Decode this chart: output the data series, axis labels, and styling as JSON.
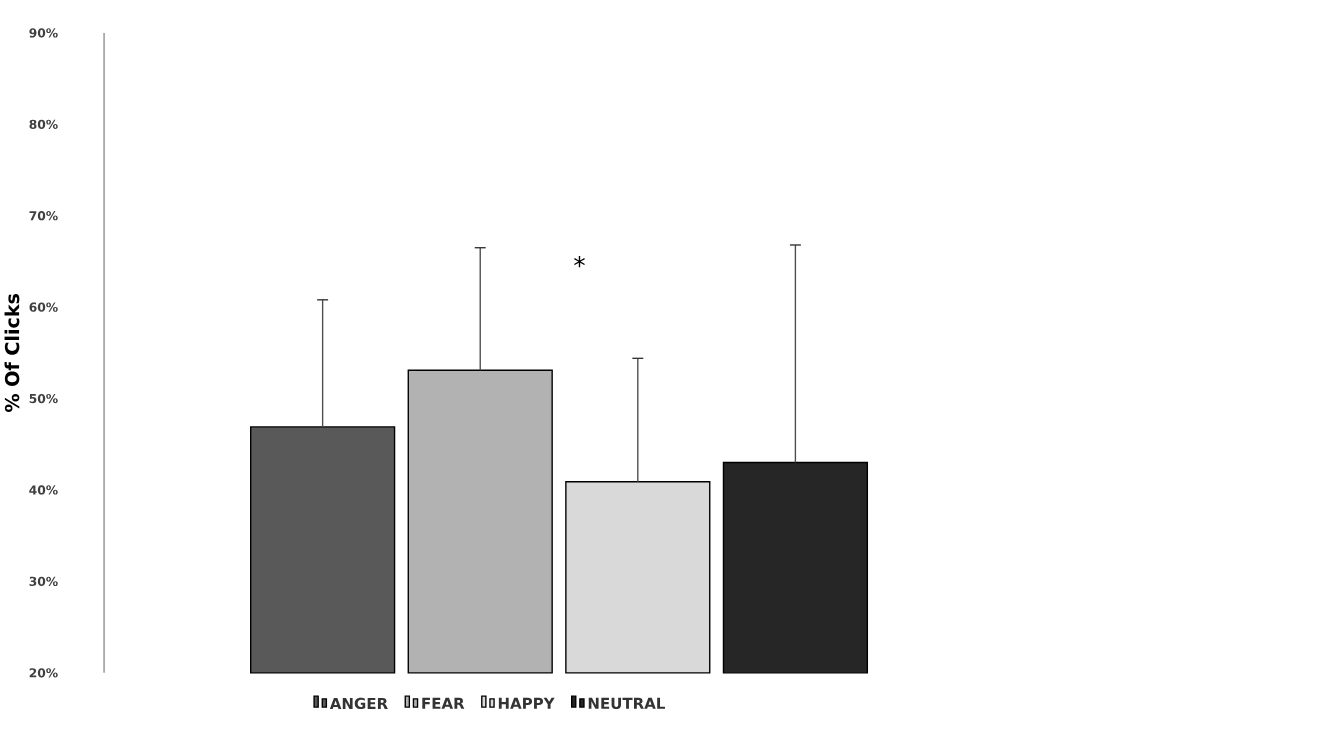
{
  "chart_data": {
    "type": "bar",
    "ylabel": "% Of Clicks",
    "categories": [
      null
    ],
    "series": [
      {
        "name": "ANGER",
        "color": "#595959",
        "values": [
          46.9
        ],
        "errors": [
          13.9
        ]
      },
      {
        "name": "FEAR",
        "color": "#b2b2b2",
        "values": [
          53.1
        ],
        "errors": [
          13.4
        ]
      },
      {
        "name": "HAPPY",
        "color": "#d9d9d9",
        "values": [
          40.9
        ],
        "errors": [
          13.5
        ]
      },
      {
        "name": "NEUTRAL",
        "color": "#262626",
        "values": [
          43.0
        ],
        "errors": [
          23.8
        ]
      }
    ],
    "ylim": [
      20,
      90
    ],
    "yticks": [
      {
        "value": 20,
        "label": "20%"
      },
      {
        "value": 30,
        "label": "30%"
      },
      {
        "value": 40,
        "label": "40%"
      },
      {
        "value": 50,
        "label": "50%"
      },
      {
        "value": 60,
        "label": "60%"
      },
      {
        "value": 70,
        "label": "70%"
      },
      {
        "value": 80,
        "label": "80%"
      },
      {
        "value": 90,
        "label": "90%"
      }
    ],
    "tick_labels": "y",
    "grid": false,
    "legend": "bottom",
    "annotations": [
      "*"
    ]
  }
}
